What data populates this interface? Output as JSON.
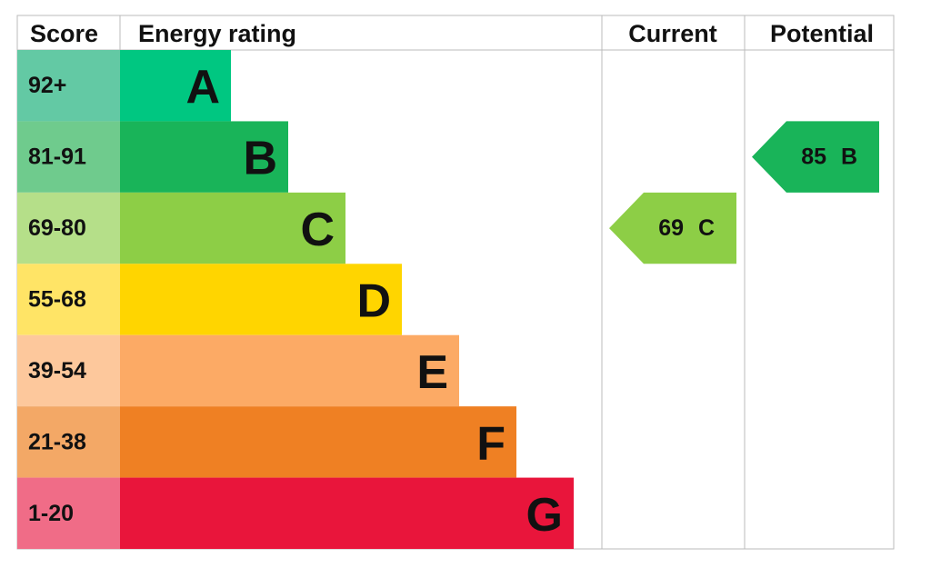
{
  "header": {
    "score": "Score",
    "rating": "Energy rating",
    "current": "Current",
    "potential": "Potential"
  },
  "bands": [
    {
      "score": "92+",
      "letter": "A",
      "color": "#00c781",
      "score_color": "#63c9a4"
    },
    {
      "score": "81-91",
      "letter": "B",
      "color": "#19b459",
      "score_color": "#6fcb8d"
    },
    {
      "score": "69-80",
      "letter": "C",
      "color": "#8dce46",
      "score_color": "#b5df89"
    },
    {
      "score": "55-68",
      "letter": "D",
      "color": "#ffd500",
      "score_color": "#ffe466"
    },
    {
      "score": "39-54",
      "letter": "E",
      "color": "#fcaa65",
      "score_color": "#fdc89c"
    },
    {
      "score": "21-38",
      "letter": "F",
      "color": "#ef8023",
      "score_color": "#f3a866"
    },
    {
      "score": "1-20",
      "letter": "G",
      "color": "#e9153b",
      "score_color": "#f06c87"
    }
  ],
  "current": {
    "value": 69,
    "letter": "C"
  },
  "potential": {
    "value": 85,
    "letter": "B"
  }
}
